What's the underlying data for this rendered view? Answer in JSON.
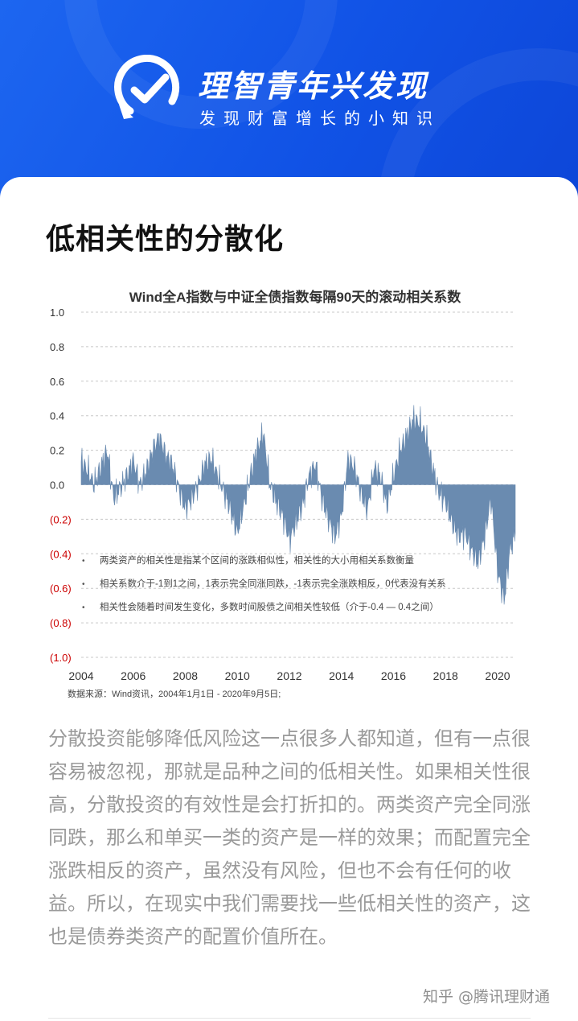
{
  "header": {
    "brand_title": "理智青年兴发现",
    "brand_subtitle": "发现财富增长的小知识",
    "background_color": "#1a5fee",
    "logo_icon": "check-circle-icon"
  },
  "article": {
    "heading": "低相关性的分散化",
    "paragraph": "分散投资能够降低风险这一点很多人都知道，但有一点很容易被忽视，那就是品种之间的低相关性。如果相关性很高，分散投资的有效性是会打折扣的。两类资产完全同涨同跌，那么和单买一类的资产是一样的效果；而配置完全涨跌相反的资产，虽然没有风险，但也不会有任何的收益。所以，在现实中我们需要找一些低相关性的资产，这也是债券类资产的配置价值所在。"
  },
  "watermark": "知乎 @腾讯理财通",
  "chart_data": {
    "type": "area",
    "title": "Wind全A指数与中证全债指数每隔90天的滚动相关系数",
    "y_tick_labels": [
      "1.0",
      "0.8",
      "0.6",
      "0.4",
      "0.2",
      "0.0",
      "(0.2)",
      "(0.4)",
      "(0.6)",
      "(0.8)",
      "(1.0)"
    ],
    "y_tick_values": [
      1.0,
      0.8,
      0.6,
      0.4,
      0.2,
      0.0,
      -0.2,
      -0.4,
      -0.6,
      -0.8,
      -1.0
    ],
    "negative_tick_color": "#cc0000",
    "x_tick_labels": [
      "2004",
      "2006",
      "2008",
      "2010",
      "2012",
      "2014",
      "2016",
      "2018",
      "2020"
    ],
    "x_tick_values": [
      2004,
      2006,
      2008,
      2010,
      2012,
      2014,
      2016,
      2018,
      2020
    ],
    "ylim": [
      -1.0,
      1.0
    ],
    "xlim": [
      2004,
      2020.68
    ],
    "grid": true,
    "series_color": "#6a8bb0",
    "notes": [
      "两类资产的相关性是指某个区间的涨跌相似性，相关性的大小用相关系数衡量",
      "相关系数介于-1到1之间，1表示完全同涨同跌，-1表示完全涨跌相反，0代表没有关系",
      "相关性会随着时间发生变化，多数时间股债之间相关性较低（介于-0.4 — 0.4之间）"
    ],
    "source": "数据来源：Wind资讯，2004年1月1日 - 2020年9月5日;",
    "series": [
      {
        "x": [
          2004.0,
          2004.25,
          2004.5,
          2004.75,
          2005.0,
          2005.25,
          2005.5,
          2005.75,
          2006.0,
          2006.25,
          2006.5,
          2006.75,
          2007.0,
          2007.25,
          2007.5,
          2007.75,
          2008.0,
          2008.25,
          2008.5,
          2008.75,
          2009.0,
          2009.25,
          2009.5,
          2009.75,
          2010.0,
          2010.25,
          2010.5,
          2010.75,
          2011.0,
          2011.25,
          2011.5,
          2011.75,
          2012.0,
          2012.25,
          2012.5,
          2012.75,
          2013.0,
          2013.25,
          2013.5,
          2013.75,
          2014.0,
          2014.25,
          2014.5,
          2014.75,
          2015.0,
          2015.25,
          2015.5,
          2015.75,
          2016.0,
          2016.25,
          2016.5,
          2016.75,
          2017.0,
          2017.25,
          2017.5,
          2017.75,
          2018.0,
          2018.25,
          2018.5,
          2018.75,
          2019.0,
          2019.25,
          2019.5,
          2019.75,
          2020.0,
          2020.25,
          2020.5,
          2020.68
        ],
        "values": [
          0.14,
          0.08,
          0.0,
          0.1,
          0.2,
          -0.08,
          -0.02,
          0.05,
          0.14,
          0.0,
          0.08,
          0.2,
          0.28,
          0.17,
          0.12,
          -0.02,
          -0.14,
          -0.08,
          0.0,
          0.12,
          0.15,
          0.05,
          -0.05,
          -0.15,
          -0.28,
          -0.12,
          0.05,
          0.2,
          0.3,
          0.0,
          -0.1,
          -0.18,
          -0.32,
          -0.22,
          -0.12,
          0.05,
          0.12,
          -0.08,
          -0.2,
          -0.3,
          -0.18,
          0.15,
          0.1,
          -0.05,
          -0.15,
          0.1,
          0.05,
          -0.12,
          0.05,
          0.2,
          0.28,
          0.38,
          0.36,
          0.28,
          0.1,
          -0.05,
          -0.1,
          -0.22,
          -0.3,
          -0.28,
          -0.38,
          -0.45,
          -0.3,
          -0.08,
          -0.5,
          -0.67,
          -0.35,
          -0.28
        ]
      }
    ]
  }
}
